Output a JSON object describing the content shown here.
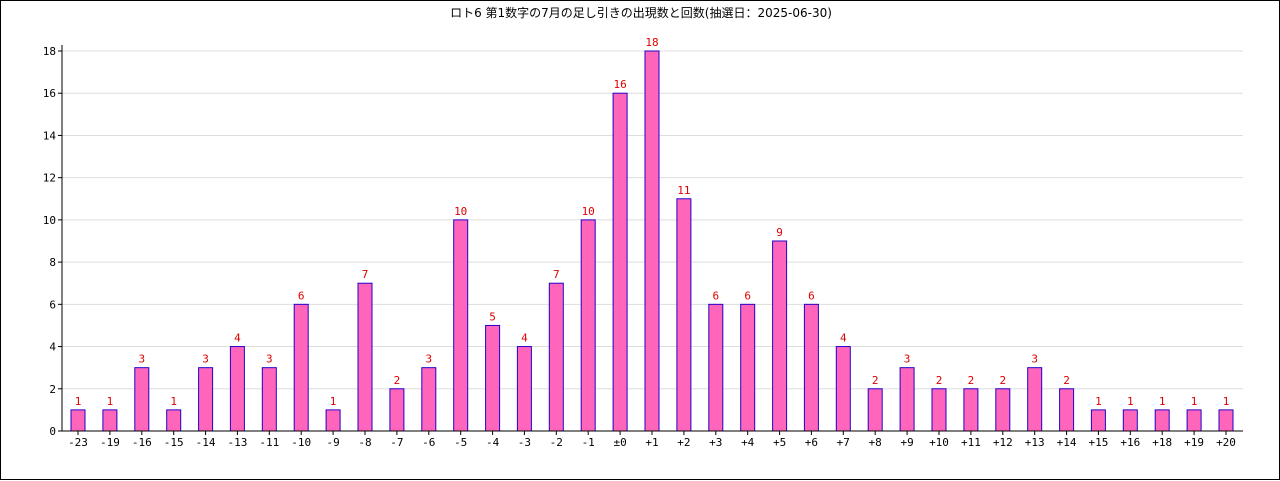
{
  "chart_data": {
    "type": "bar",
    "title": "ロト6 第1数字の7月の足し引きの出現数と回数(抽選日：2025-06-30)",
    "xlabel": "",
    "ylabel": "",
    "categories": [
      "-23",
      "-19",
      "-16",
      "-15",
      "-14",
      "-13",
      "-11",
      "-10",
      "-9",
      "-8",
      "-7",
      "-6",
      "-5",
      "-4",
      "-3",
      "-2",
      "-1",
      "±0",
      "+1",
      "+2",
      "+3",
      "+4",
      "+5",
      "+6",
      "+7",
      "+8",
      "+9",
      "+10",
      "+11",
      "+12",
      "+13",
      "+14",
      "+15",
      "+16",
      "+18",
      "+19",
      "+20"
    ],
    "values": [
      1,
      1,
      3,
      1,
      3,
      4,
      3,
      6,
      1,
      7,
      2,
      3,
      10,
      5,
      4,
      7,
      10,
      16,
      18,
      11,
      6,
      6,
      9,
      6,
      4,
      2,
      3,
      2,
      2,
      2,
      3,
      2,
      1,
      1,
      1,
      1,
      1
    ],
    "ylim": [
      0,
      18
    ],
    "yticks": [
      0,
      2,
      4,
      6,
      8,
      10,
      12,
      14,
      16,
      18
    ],
    "grid": true,
    "legend": "none",
    "colors": {
      "bar_fill": "#ff66bb",
      "bar_stroke": "#2200cc",
      "value_label": "#dd0000",
      "grid": "#dddddd",
      "axis": "#000000"
    }
  }
}
